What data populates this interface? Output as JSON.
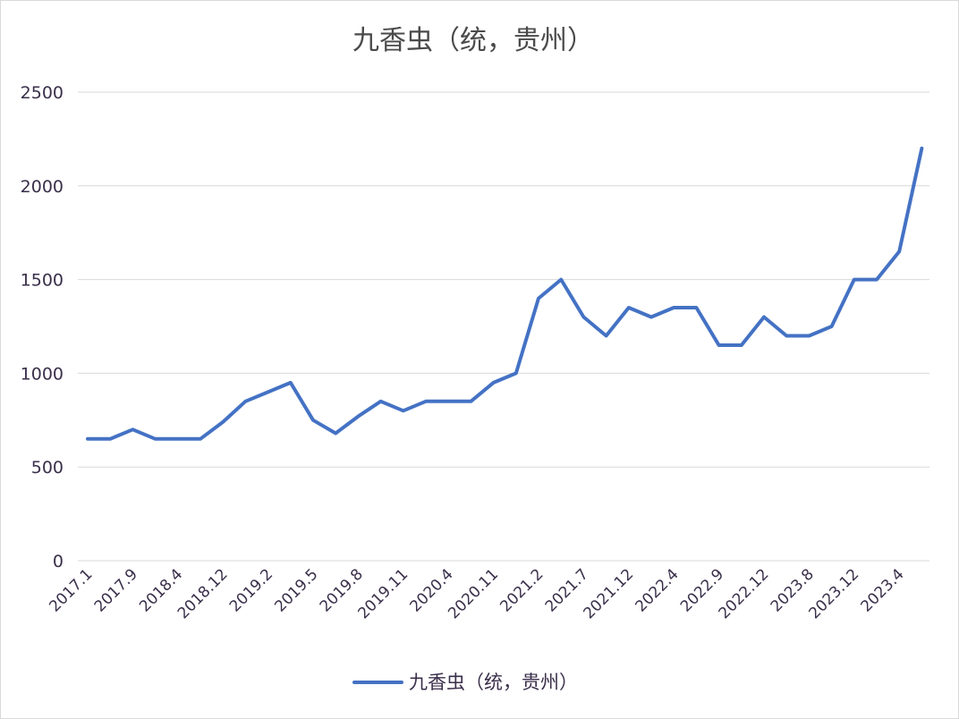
{
  "chart_data": {
    "type": "line",
    "title": "九香虫（统，贵州）",
    "xlabel": "",
    "ylabel": "",
    "ylim": [
      0,
      2500
    ],
    "yticks": [
      0,
      500,
      1000,
      1500,
      2000,
      2500
    ],
    "grid": true,
    "legend_position": "bottom",
    "x_tick_labels": [
      "2017.1",
      "2017.9",
      "2018.4",
      "2018.12",
      "2019.2",
      "2019.5",
      "2019.8",
      "2019.11",
      "2020.4",
      "2020.11",
      "2021.2",
      "2021.7",
      "2021.12",
      "2022.4",
      "2022.9",
      "2022.12",
      "2023.8",
      "2023.12",
      "2023.4"
    ],
    "series": [
      {
        "name": "九香虫（统，贵州）",
        "color": "#4472c4",
        "values": [
          650,
          650,
          700,
          650,
          650,
          650,
          740,
          850,
          900,
          950,
          750,
          680,
          770,
          850,
          800,
          850,
          850,
          850,
          950,
          1000,
          1400,
          1500,
          1300,
          1200,
          1350,
          1300,
          1350,
          1350,
          1150,
          1150,
          1300,
          1200,
          1200,
          1250,
          1500,
          1500,
          1650,
          2200
        ]
      }
    ]
  }
}
